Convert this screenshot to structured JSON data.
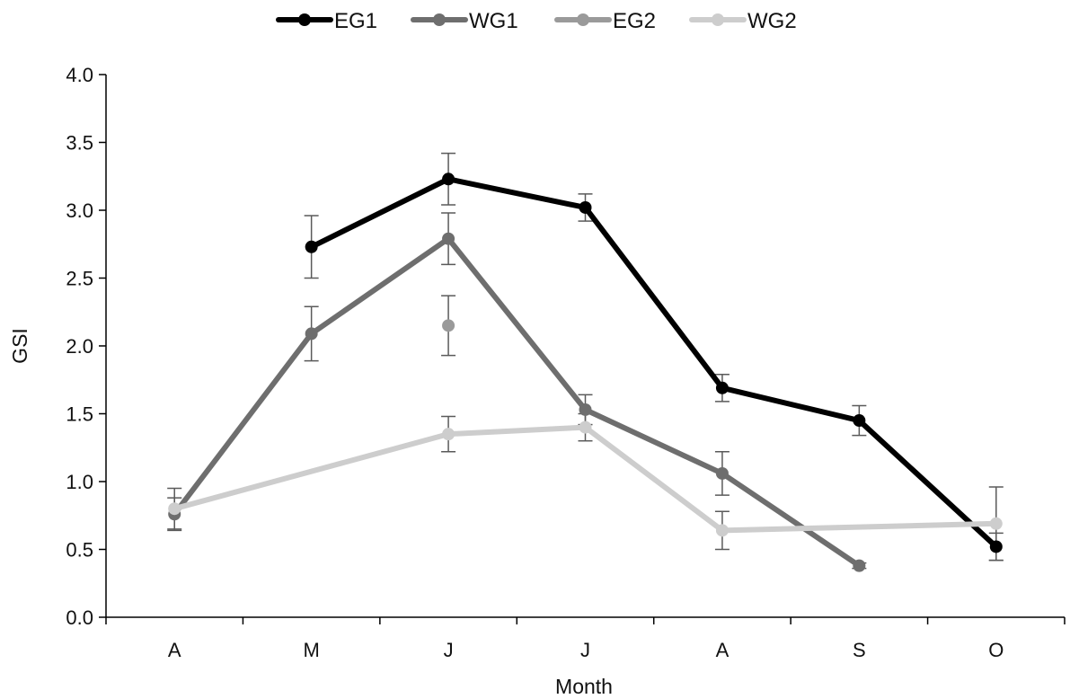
{
  "chart_data": {
    "type": "line",
    "xlabel": "Month",
    "ylabel": "GSI",
    "ylim": [
      0,
      4
    ],
    "yticks": [
      "0.0",
      "0.5",
      "1.0",
      "1.5",
      "2.0",
      "2.5",
      "3.0",
      "3.5",
      "4.0"
    ],
    "ytick_values": [
      0,
      0.5,
      1.0,
      1.5,
      2.0,
      2.5,
      3.0,
      3.5,
      4.0
    ],
    "categories": [
      "A",
      "M",
      "J",
      "J",
      "A",
      "S",
      "O"
    ],
    "legend_position": "top",
    "grid": false,
    "series": [
      {
        "name": "EG1",
        "color": "#000000",
        "values": [
          null,
          2.73,
          3.23,
          3.02,
          1.69,
          1.45,
          0.52
        ],
        "errors": [
          null,
          0.23,
          0.19,
          0.1,
          0.1,
          0.11,
          0.1
        ]
      },
      {
        "name": "WG1",
        "color": "#6e6e6e",
        "values": [
          0.76,
          2.09,
          2.79,
          1.53,
          1.06,
          0.38,
          null
        ],
        "errors": [
          0.12,
          0.2,
          0.19,
          0.11,
          0.16,
          0.02,
          null
        ]
      },
      {
        "name": "EG2",
        "color": "#9a9a9a",
        "values": [
          null,
          null,
          2.15,
          null,
          null,
          null,
          null
        ],
        "errors": [
          null,
          null,
          0.22,
          null,
          null,
          null,
          null
        ]
      },
      {
        "name": "WG2",
        "color": "#cdcdcd",
        "values": [
          0.8,
          null,
          1.35,
          1.4,
          0.64,
          null,
          0.69
        ],
        "errors": [
          0.15,
          null,
          0.13,
          0.1,
          0.14,
          null,
          0.27
        ]
      }
    ]
  }
}
